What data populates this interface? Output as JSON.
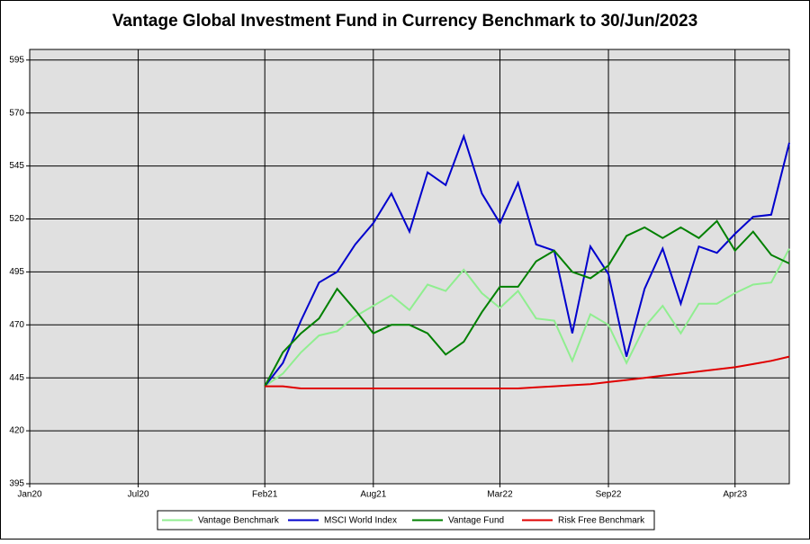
{
  "chart_data": {
    "type": "line",
    "title": "Vantage Global Investment Fund in Currency Benchmark to 30/Jun/2023",
    "x": [
      "2021-01",
      "2021-02",
      "2021-03",
      "2021-04",
      "2021-05",
      "2021-06",
      "2021-07",
      "2021-08",
      "2021-09",
      "2021-10",
      "2021-11",
      "2021-12",
      "2022-01",
      "2022-02",
      "2022-03",
      "2022-04",
      "2022-05",
      "2022-06",
      "2022-07",
      "2022-08",
      "2022-09",
      "2022-10",
      "2022-11",
      "2022-12",
      "2023-01",
      "2023-02",
      "2023-03",
      "2023-04",
      "2023-05",
      "2023-06"
    ],
    "series": [
      {
        "name": "Vantage Benchmark",
        "color": "#90ee90",
        "values": [
          441,
          447,
          457,
          465,
          467,
          474,
          479,
          484,
          477,
          489,
          486,
          496,
          485,
          478,
          486,
          473,
          472,
          453,
          475,
          470,
          452,
          469,
          479,
          466,
          480,
          480,
          485,
          489,
          490,
          506
        ]
      },
      {
        "name": "MSCI World Index",
        "color": "#0000cd",
        "values": [
          441,
          452,
          472,
          490,
          495,
          508,
          518,
          532,
          514,
          542,
          536,
          559,
          532,
          518,
          537,
          508,
          505,
          466,
          507,
          494,
          455,
          487,
          506,
          480,
          507,
          504,
          513,
          521,
          522,
          556
        ]
      },
      {
        "name": "Vantage Fund",
        "color": "#008000",
        "values": [
          441,
          457,
          466,
          473,
          487,
          477,
          466,
          470,
          470,
          466,
          456,
          462,
          476,
          488,
          488,
          500,
          505,
          495,
          492,
          498,
          512,
          516,
          511,
          516,
          511,
          519,
          505,
          514,
          503,
          499
        ]
      },
      {
        "name": "Risk Free Benchmark",
        "color": "#e00000",
        "values": [
          441,
          441,
          440,
          440,
          440,
          440,
          440,
          440,
          440,
          440,
          440,
          440,
          440,
          440,
          440,
          440.5,
          441,
          441.5,
          442,
          443,
          444,
          445,
          446,
          447,
          448,
          449,
          450,
          451.5,
          453,
          455
        ]
      }
    ],
    "xlim": [
      "2020-01",
      "2023-06"
    ],
    "xticks": [
      {
        "value": "2020-01",
        "label": "Jan20"
      },
      {
        "value": "2020-07",
        "label": "Jul20"
      },
      {
        "value": "2021-02",
        "label": "Feb21"
      },
      {
        "value": "2021-08",
        "label": "Aug21"
      },
      {
        "value": "2022-03",
        "label": "Mar22"
      },
      {
        "value": "2022-09",
        "label": "Sep22"
      },
      {
        "value": "2023-04",
        "label": "Apr23"
      }
    ],
    "ylim": [
      395,
      600
    ],
    "yticks": [
      395,
      420,
      445,
      470,
      495,
      520,
      545,
      570,
      595
    ],
    "grid": true
  }
}
